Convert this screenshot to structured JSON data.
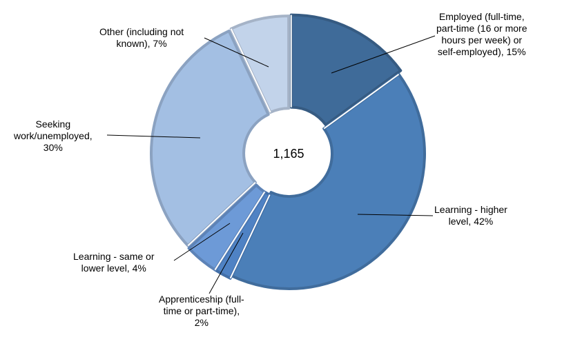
{
  "chart_data": {
    "type": "pie",
    "variant": "donut",
    "total_label": "1,165",
    "slices": [
      {
        "name": "Employed (full-time, part-time (16 or more hours per week) or self-employed), 15%",
        "value": 15,
        "color": "#3f6b99"
      },
      {
        "name": "Learning - higher level, 42%",
        "value": 42,
        "color": "#4b7fb8"
      },
      {
        "name": "Apprenticeship (full-time or part-time), 2%",
        "value": 2,
        "color": "#4f82c4"
      },
      {
        "name": "Learning - same or lower level, 4%",
        "value": 4,
        "color": "#6d9ad7"
      },
      {
        "name": "Seeking work/unemployed, 30%",
        "value": 30,
        "color": "#a3bfe3"
      },
      {
        "name": "Other (including not known), 7%",
        "value": 7,
        "color": "#c2d3ea"
      }
    ],
    "labels": [
      "Employed (full-time,\npart-time (16 or more\nhours per week) or\nself-employed), 15%",
      "Learning - higher\nlevel, 42%",
      "Apprenticeship (full-\ntime or part-time),\n2%",
      "Learning - same or\nlower level, 4%",
      "Seeking\nwork/unemployed,\n30%",
      "Other (including not\nknown), 7%"
    ]
  }
}
